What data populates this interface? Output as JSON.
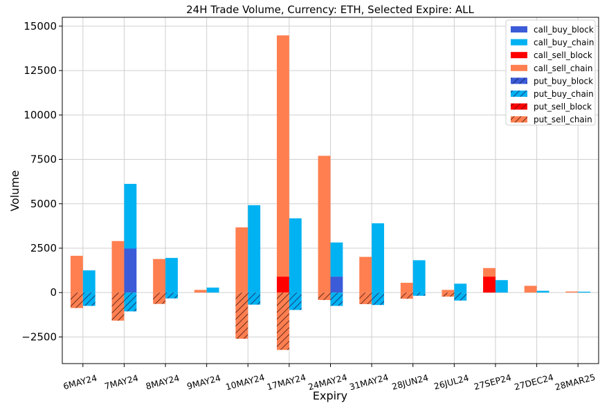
{
  "chart_data": {
    "type": "bar",
    "title": "24H Trade Volume, Currency: ETH, Selected Expire: ALL",
    "xlabel": "Expiry",
    "ylabel": "Volume",
    "ylim": [
      -4000,
      15500
    ],
    "yticks": [
      -2500,
      0,
      2500,
      5000,
      7500,
      10000,
      12500,
      15000
    ],
    "ytick_labels": [
      "−2500",
      "0",
      "2500",
      "5000",
      "7500",
      "10000",
      "12500",
      "15000"
    ],
    "grid": true,
    "legend_position": "top-right",
    "categories": [
      "6MAY24",
      "7MAY24",
      "8MAY24",
      "9MAY24",
      "10MAY24",
      "17MAY24",
      "24MAY24",
      "31MAY24",
      "28JUN24",
      "26JUL24",
      "27SEP24",
      "27DEC24",
      "28MAR25"
    ],
    "series": [
      {
        "name": "call_buy_block",
        "color": "#3b5bd8",
        "hatch": false,
        "values": [
          0,
          2480,
          0,
          0,
          0,
          0,
          900,
          0,
          0,
          0,
          0,
          0,
          0
        ]
      },
      {
        "name": "call_buy_chain",
        "color": "#00b2f2",
        "hatch": false,
        "values": [
          1250,
          3640,
          1950,
          280,
          4920,
          4180,
          1920,
          3900,
          1820,
          500,
          700,
          100,
          50
        ]
      },
      {
        "name": "call_sell_block",
        "color": "#ff0000",
        "hatch": false,
        "values": [
          0,
          0,
          0,
          0,
          0,
          900,
          0,
          0,
          0,
          0,
          900,
          0,
          0
        ]
      },
      {
        "name": "call_sell_chain",
        "color": "#ff7f50",
        "hatch": false,
        "values": [
          2070,
          2900,
          1890,
          150,
          3670,
          13580,
          7700,
          2010,
          550,
          150,
          480,
          380,
          60
        ]
      },
      {
        "name": "put_buy_block",
        "color": "#3b5bd8",
        "hatch": true,
        "values": [
          0,
          0,
          0,
          0,
          0,
          0,
          0,
          0,
          0,
          0,
          0,
          0,
          0
        ]
      },
      {
        "name": "put_buy_chain",
        "color": "#00b2f2",
        "hatch": true,
        "values": [
          -750,
          -1060,
          -330,
          0,
          -680,
          -980,
          -750,
          -700,
          -180,
          -450,
          0,
          0,
          0
        ]
      },
      {
        "name": "put_sell_block",
        "color": "#ff0000",
        "hatch": true,
        "values": [
          0,
          0,
          0,
          0,
          0,
          0,
          0,
          0,
          0,
          0,
          0,
          0,
          0
        ]
      },
      {
        "name": "put_sell_chain",
        "color": "#ff7f50",
        "hatch": true,
        "values": [
          -870,
          -1580,
          -640,
          0,
          -2600,
          -3230,
          -420,
          -650,
          -350,
          -230,
          0,
          0,
          0
        ]
      }
    ]
  }
}
